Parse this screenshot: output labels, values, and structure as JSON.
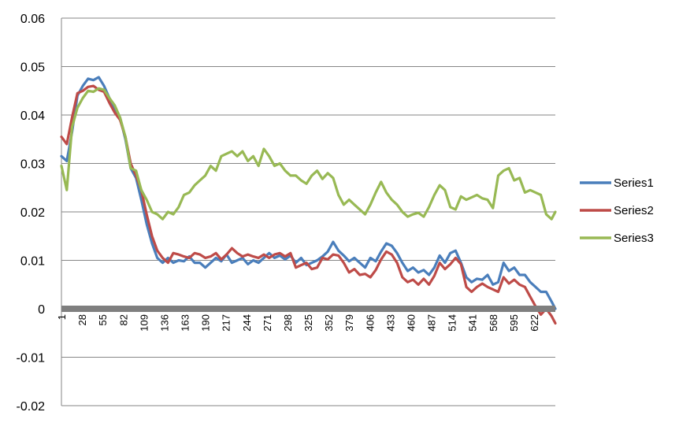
{
  "chart_data": {
    "type": "line",
    "title": "",
    "xlabel": "",
    "ylabel": "",
    "ylim": [
      -0.02,
      0.06
    ],
    "yticks": [
      "-0.02",
      "-0.01",
      "0",
      "0.01",
      "0.02",
      "0.03",
      "0.04",
      "0.05",
      "0.06"
    ],
    "yticks_values": [
      -0.02,
      -0.01,
      0,
      0.01,
      0.02,
      0.03,
      0.04,
      0.05,
      0.06
    ],
    "xlim": [
      1,
      650
    ],
    "xticks": [
      "1",
      "28",
      "55",
      "82",
      "109",
      "136",
      "163",
      "190",
      "217",
      "244",
      "271",
      "298",
      "325",
      "352",
      "379",
      "406",
      "433",
      "460",
      "487",
      "514",
      "541",
      "568",
      "595",
      "622"
    ],
    "grid": true,
    "legend_position": "right",
    "series": [
      {
        "name": "Series1",
        "color": "#4a7ebb",
        "x": [
          1,
          8,
          15,
          22,
          29,
          36,
          43,
          50,
          57,
          64,
          71,
          78,
          85,
          92,
          99,
          106,
          113,
          120,
          127,
          134,
          141,
          148,
          155,
          162,
          169,
          176,
          183,
          190,
          197,
          204,
          211,
          218,
          225,
          232,
          239,
          246,
          253,
          260,
          267,
          274,
          281,
          288,
          295,
          302,
          309,
          316,
          323,
          330,
          337,
          344,
          351,
          358,
          365,
          372,
          379,
          386,
          393,
          400,
          407,
          414,
          421,
          428,
          435,
          442,
          449,
          456,
          463,
          470,
          477,
          484,
          491,
          498,
          505,
          512,
          519,
          526,
          533,
          540,
          547,
          554,
          561,
          568,
          575,
          582,
          589,
          596,
          603,
          610,
          617,
          624,
          631,
          638,
          645,
          650
        ],
        "y": [
          0.0315,
          0.0305,
          0.0365,
          0.044,
          0.046,
          0.0475,
          0.0472,
          0.0478,
          0.046,
          0.0435,
          0.0415,
          0.0395,
          0.035,
          0.029,
          0.027,
          0.0225,
          0.0175,
          0.0135,
          0.0105,
          0.0095,
          0.0105,
          0.0095,
          0.01,
          0.0098,
          0.0108,
          0.0095,
          0.0095,
          0.0085,
          0.0095,
          0.0105,
          0.0098,
          0.0112,
          0.0095,
          0.01,
          0.0105,
          0.0092,
          0.01,
          0.0095,
          0.0105,
          0.0115,
          0.0105,
          0.011,
          0.0102,
          0.011,
          0.0095,
          0.0105,
          0.009,
          0.0095,
          0.01,
          0.0108,
          0.0118,
          0.0138,
          0.012,
          0.011,
          0.0098,
          0.0105,
          0.0095,
          0.0085,
          0.0105,
          0.0098,
          0.0118,
          0.0135,
          0.013,
          0.0115,
          0.0095,
          0.0078,
          0.0085,
          0.0075,
          0.008,
          0.007,
          0.0085,
          0.011,
          0.0095,
          0.0115,
          0.012,
          0.0095,
          0.0065,
          0.0055,
          0.0062,
          0.006,
          0.007,
          0.005,
          0.0055,
          0.0095,
          0.0078,
          0.0085,
          0.007,
          0.007,
          0.0055,
          0.0045,
          0.0035,
          0.0035,
          0.0015,
          0.0
        ]
      },
      {
        "name": "Series2",
        "color": "#be4b48",
        "x": [
          1,
          8,
          15,
          22,
          29,
          36,
          43,
          50,
          57,
          64,
          71,
          78,
          85,
          92,
          99,
          106,
          113,
          120,
          127,
          134,
          141,
          148,
          155,
          162,
          169,
          176,
          183,
          190,
          197,
          204,
          211,
          218,
          225,
          232,
          239,
          246,
          253,
          260,
          267,
          274,
          281,
          288,
          295,
          302,
          309,
          316,
          323,
          330,
          337,
          344,
          351,
          358,
          365,
          372,
          379,
          386,
          393,
          400,
          407,
          414,
          421,
          428,
          435,
          442,
          449,
          456,
          463,
          470,
          477,
          484,
          491,
          498,
          505,
          512,
          519,
          526,
          533,
          540,
          547,
          554,
          561,
          568,
          575,
          582,
          589,
          596,
          603,
          610,
          617,
          624,
          631,
          638,
          645,
          650
        ],
        "y": [
          0.0355,
          0.034,
          0.0395,
          0.0445,
          0.045,
          0.0458,
          0.046,
          0.0452,
          0.0448,
          0.0425,
          0.0405,
          0.039,
          0.0355,
          0.03,
          0.0275,
          0.0245,
          0.0195,
          0.015,
          0.012,
          0.0105,
          0.0095,
          0.0115,
          0.0112,
          0.0108,
          0.0105,
          0.0115,
          0.0112,
          0.0105,
          0.0108,
          0.0115,
          0.0102,
          0.0112,
          0.0125,
          0.0115,
          0.0108,
          0.0112,
          0.0108,
          0.0105,
          0.0112,
          0.0105,
          0.0112,
          0.0115,
          0.0108,
          0.0115,
          0.0085,
          0.009,
          0.0095,
          0.0082,
          0.0085,
          0.0105,
          0.0102,
          0.0112,
          0.011,
          0.0095,
          0.0075,
          0.0082,
          0.007,
          0.0072,
          0.0065,
          0.008,
          0.0102,
          0.0118,
          0.0112,
          0.0095,
          0.0065,
          0.0055,
          0.006,
          0.005,
          0.0062,
          0.005,
          0.0068,
          0.0095,
          0.0082,
          0.0092,
          0.0105,
          0.0092,
          0.0045,
          0.0035,
          0.0045,
          0.0052,
          0.0045,
          0.004,
          0.0035,
          0.0065,
          0.0052,
          0.006,
          0.005,
          0.0045,
          0.0025,
          0.0005,
          -0.0012,
          0.0,
          -0.0015,
          -0.003
        ]
      },
      {
        "name": "Series3",
        "color": "#98b954",
        "x": [
          1,
          8,
          15,
          22,
          29,
          36,
          43,
          50,
          57,
          64,
          71,
          78,
          85,
          92,
          99,
          106,
          113,
          120,
          127,
          134,
          141,
          148,
          155,
          162,
          169,
          176,
          183,
          190,
          197,
          204,
          211,
          218,
          225,
          232,
          239,
          246,
          253,
          260,
          267,
          274,
          281,
          288,
          295,
          302,
          309,
          316,
          323,
          330,
          337,
          344,
          351,
          358,
          365,
          372,
          379,
          386,
          393,
          400,
          407,
          414,
          421,
          428,
          435,
          442,
          449,
          456,
          463,
          470,
          477,
          484,
          491,
          498,
          505,
          512,
          519,
          526,
          533,
          540,
          547,
          554,
          561,
          568,
          575,
          582,
          589,
          596,
          603,
          610,
          617,
          624,
          631,
          638,
          645,
          650
        ],
        "y": [
          0.0295,
          0.0245,
          0.0375,
          0.0415,
          0.0435,
          0.045,
          0.0448,
          0.0455,
          0.0452,
          0.0435,
          0.042,
          0.0395,
          0.0355,
          0.029,
          0.0285,
          0.0245,
          0.0225,
          0.02,
          0.0195,
          0.0185,
          0.02,
          0.0195,
          0.021,
          0.0235,
          0.024,
          0.0255,
          0.0265,
          0.0275,
          0.0295,
          0.0285,
          0.0315,
          0.032,
          0.0325,
          0.0315,
          0.0325,
          0.0305,
          0.0315,
          0.0295,
          0.033,
          0.0315,
          0.0295,
          0.03,
          0.0285,
          0.0275,
          0.0275,
          0.0265,
          0.0258,
          0.0275,
          0.0285,
          0.0268,
          0.028,
          0.027,
          0.0235,
          0.0215,
          0.0225,
          0.0215,
          0.0205,
          0.0195,
          0.0215,
          0.024,
          0.0262,
          0.024,
          0.0225,
          0.0215,
          0.02,
          0.019,
          0.0195,
          0.0198,
          0.019,
          0.021,
          0.0235,
          0.0255,
          0.0245,
          0.021,
          0.0205,
          0.0232,
          0.0225,
          0.023,
          0.0235,
          0.0228,
          0.0225,
          0.0208,
          0.0275,
          0.0285,
          0.029,
          0.0265,
          0.027,
          0.024,
          0.0245,
          0.024,
          0.0235,
          0.0195,
          0.0185,
          0.02
        ]
      }
    ]
  }
}
